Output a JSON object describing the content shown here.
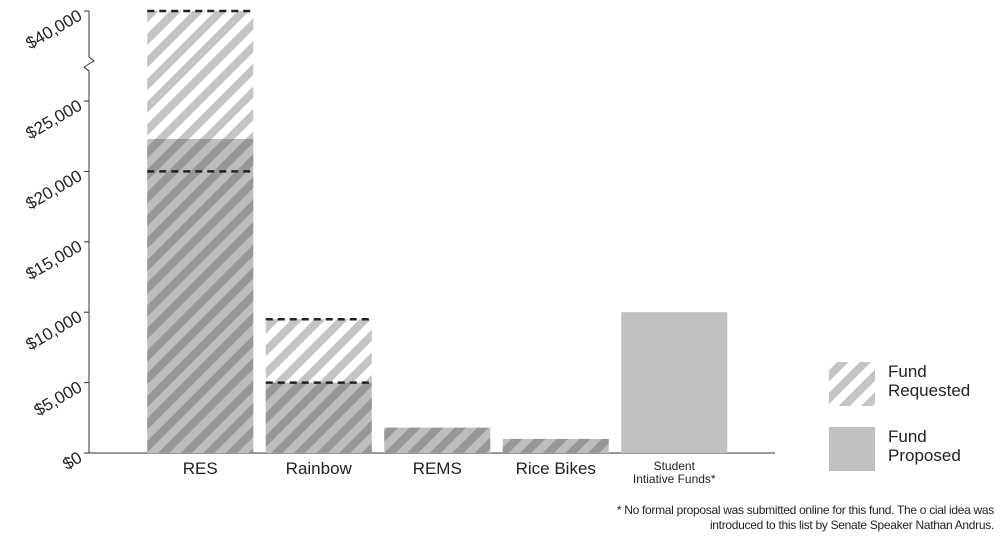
{
  "chart_data": {
    "type": "bar",
    "categories": [
      "RES",
      "Rainbow",
      "REMS",
      "Rice Bikes",
      "Student\nIntiative Funds*"
    ],
    "series": [
      {
        "name": "Fund\nRequested",
        "color": "#c4c4c4",
        "values": [
          40000,
          9500,
          1800,
          1000,
          null
        ]
      },
      {
        "name": "Fund\nProposed",
        "color": "#c0c0c0",
        "values": [
          22300,
          5000,
          1800,
          1000,
          10000
        ]
      }
    ],
    "reference_lines": [
      {
        "category": "RES",
        "value": 40000
      },
      {
        "category": "RES",
        "value": 20000
      },
      {
        "category": "Rainbow",
        "value": 9500
      },
      {
        "category": "Rainbow",
        "value": 5000
      }
    ],
    "ylim": [
      0,
      40000
    ],
    "axis_break_at": 25000,
    "yticks": [
      {
        "value": 0,
        "label": "$0"
      },
      {
        "value": 5000,
        "label": "$5,000"
      },
      {
        "value": 10000,
        "label": "$10,000"
      },
      {
        "value": 15000,
        "label": "$15,000"
      },
      {
        "value": 20000,
        "label": "$20,000"
      },
      {
        "value": 25000,
        "label": "$25,000"
      },
      {
        "value": 40000,
        "label": "$40,000"
      }
    ],
    "grid": false,
    "legend": "right",
    "footnote": [
      "* No formal proposal was submitted online for this fund. The o  cial idea was",
      "introduced to this list by Senate Speaker Nathan Andrus."
    ]
  }
}
